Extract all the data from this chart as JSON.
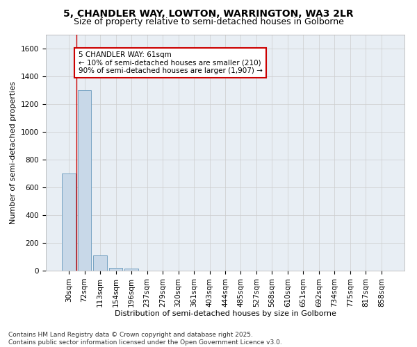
{
  "title1": "5, CHANDLER WAY, LOWTON, WARRINGTON, WA3 2LR",
  "title2": "Size of property relative to semi-detached houses in Golborne",
  "xlabel": "Distribution of semi-detached houses by size in Golborne",
  "ylabel": "Number of semi-detached properties",
  "categories": [
    "30sqm",
    "72sqm",
    "113sqm",
    "154sqm",
    "196sqm",
    "237sqm",
    "279sqm",
    "320sqm",
    "361sqm",
    "403sqm",
    "444sqm",
    "485sqm",
    "527sqm",
    "568sqm",
    "610sqm",
    "651sqm",
    "692sqm",
    "734sqm",
    "775sqm",
    "817sqm",
    "858sqm"
  ],
  "values": [
    700,
    1300,
    110,
    20,
    15,
    0,
    0,
    0,
    0,
    0,
    0,
    0,
    0,
    0,
    0,
    0,
    0,
    0,
    0,
    0,
    0
  ],
  "bar_color": "#c8d8e8",
  "bar_edge_color": "#6699bb",
  "grid_color": "#cccccc",
  "bg_color": "#e8eef4",
  "annotation_text": "5 CHANDLER WAY: 61sqm\n← 10% of semi-detached houses are smaller (210)\n90% of semi-detached houses are larger (1,907) →",
  "annotation_box_color": "#cc0000",
  "vline_x": 0.5,
  "ylim": [
    0,
    1700
  ],
  "yticks": [
    0,
    200,
    400,
    600,
    800,
    1000,
    1200,
    1400,
    1600
  ],
  "footer": "Contains HM Land Registry data © Crown copyright and database right 2025.\nContains public sector information licensed under the Open Government Licence v3.0.",
  "title1_fontsize": 10,
  "title2_fontsize": 9,
  "axis_label_fontsize": 8,
  "tick_fontsize": 7.5,
  "annotation_fontsize": 7.5,
  "footer_fontsize": 6.5
}
